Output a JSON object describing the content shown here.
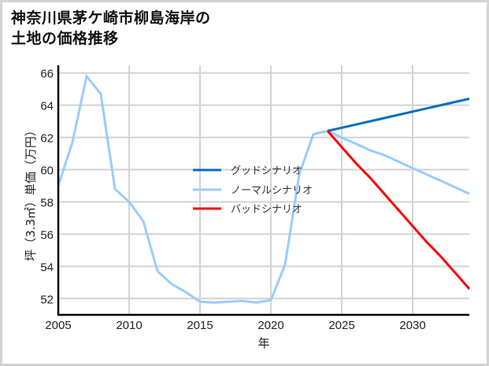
{
  "title_line1": "神奈川県茅ケ崎市柳島海岸の",
  "title_line2": "土地の価格推移",
  "chart_data": {
    "type": "line",
    "title": "神奈川県茅ケ崎市柳島海岸の土地の価格推移",
    "xlabel": "年",
    "ylabel": "坪（3.3㎡）単価（万円）",
    "xlim": [
      2005,
      2034
    ],
    "ylim": [
      51,
      66.5
    ],
    "xticks": [
      2005,
      2010,
      2015,
      2020,
      2025,
      2030
    ],
    "yticks": [
      52,
      54,
      56,
      58,
      60,
      62,
      64,
      66
    ],
    "grid": true,
    "legend_position": "center",
    "series": [
      {
        "name": "ノーマルシナリオ",
        "color": "#99ccff",
        "x": [
          2005,
          2006,
          2007,
          2008,
          2009,
          2010,
          2011,
          2012,
          2013,
          2014,
          2015,
          2016,
          2017,
          2018,
          2019,
          2020,
          2021,
          2022,
          2023,
          2024,
          2025,
          2026,
          2027,
          2028,
          2029,
          2030,
          2031,
          2032,
          2033,
          2034
        ],
        "values": [
          59.0,
          61.7,
          65.8,
          64.7,
          58.8,
          58.0,
          56.8,
          53.7,
          52.9,
          52.4,
          51.8,
          51.75,
          51.8,
          51.85,
          51.75,
          51.9,
          54.1,
          59.7,
          62.2,
          62.4,
          62.0,
          61.6,
          61.2,
          60.9,
          60.5,
          60.1,
          59.7,
          59.3,
          58.9,
          58.5
        ]
      },
      {
        "name": "グッドシナリオ",
        "color": "#0070c0",
        "x": [
          2024,
          2025,
          2026,
          2027,
          2028,
          2029,
          2030,
          2031,
          2032,
          2033,
          2034
        ],
        "values": [
          62.4,
          62.6,
          62.8,
          63.0,
          63.2,
          63.4,
          63.6,
          63.8,
          64.0,
          64.2,
          64.4
        ]
      },
      {
        "name": "バッドシナリオ",
        "color": "#ff0000",
        "x": [
          2024,
          2025,
          2026,
          2027,
          2028,
          2029,
          2030,
          2031,
          2032,
          2033,
          2034
        ],
        "values": [
          62.4,
          61.4,
          60.4,
          59.5,
          58.5,
          57.5,
          56.5,
          55.5,
          54.6,
          53.6,
          52.6
        ]
      }
    ],
    "legend": [
      "グッドシナリオ",
      "ノーマルシナリオ",
      "バッドシナリオ"
    ]
  }
}
